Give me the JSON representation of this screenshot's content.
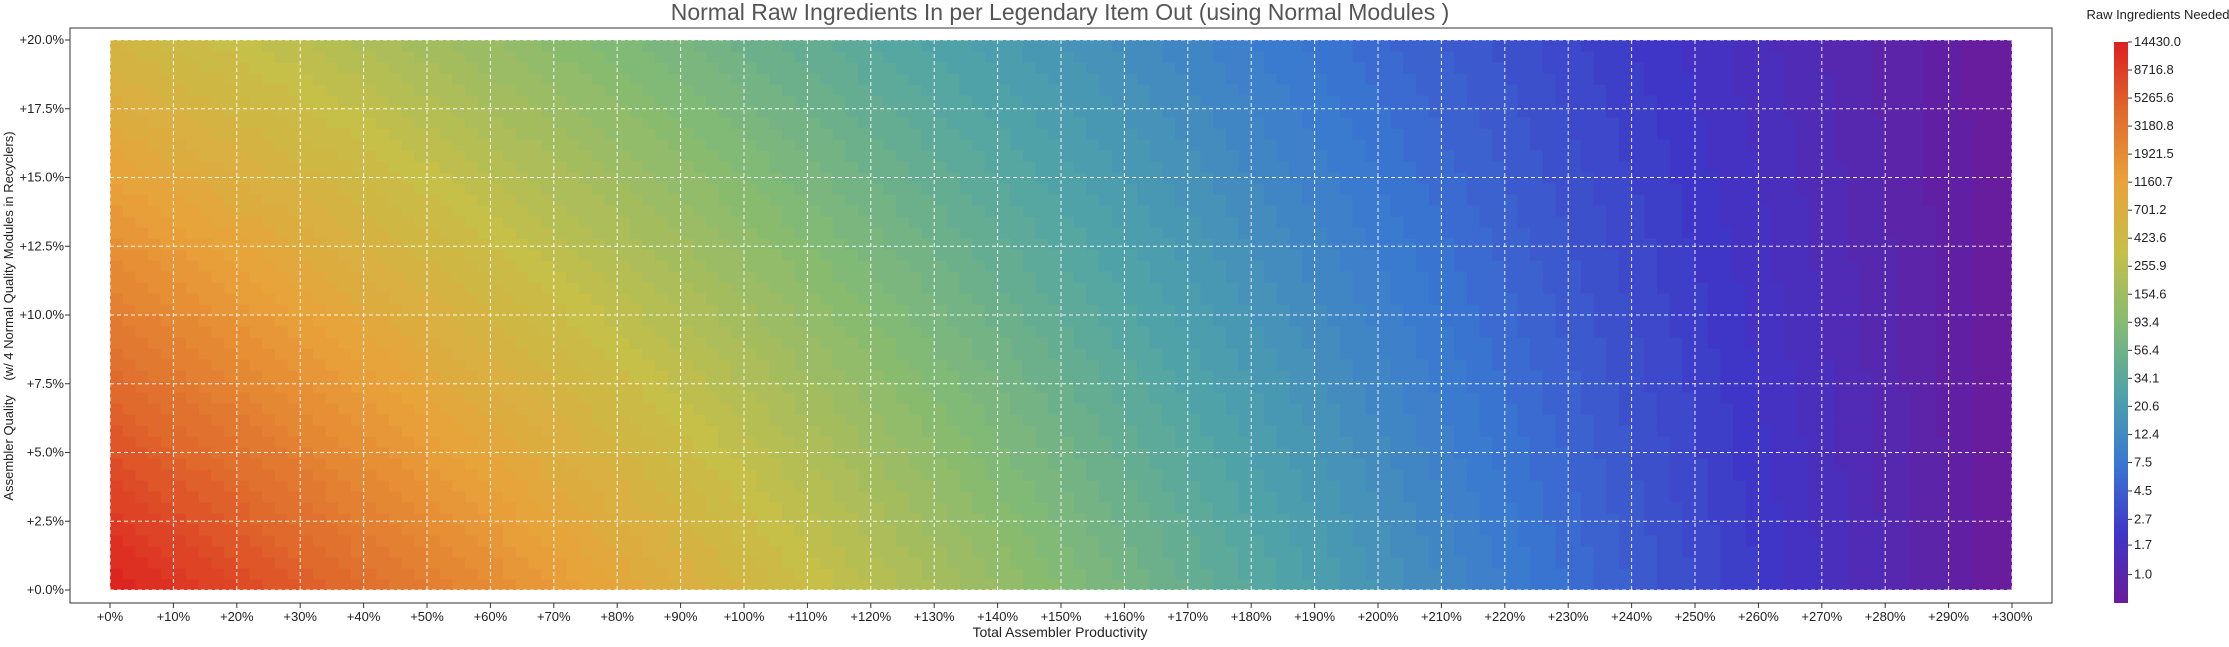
{
  "chart_data": {
    "type": "heatmap",
    "title": "Normal Raw Ingredients In per Legendary Item Out (using Normal Modules )",
    "xlabel": "Total Assembler Productivity",
    "ylabel": "Assembler Quality    (w/ 4 Normal Quality Modules in Recyclers)",
    "x_ticks": [
      "+0%",
      "+10%",
      "+20%",
      "+30%",
      "+40%",
      "+50%",
      "+60%",
      "+70%",
      "+80%",
      "+90%",
      "+100%",
      "+110%",
      "+120%",
      "+130%",
      "+140%",
      "+150%",
      "+160%",
      "+170%",
      "+180%",
      "+190%",
      "+200%",
      "+210%",
      "+220%",
      "+230%",
      "+240%",
      "+250%",
      "+260%",
      "+270%",
      "+280%",
      "+290%",
      "+300%"
    ],
    "y_ticks": [
      "+0.0%",
      "+2.5%",
      "+5.0%",
      "+7.5%",
      "+10.0%",
      "+12.5%",
      "+15.0%",
      "+17.5%",
      "+20.0%"
    ],
    "xlim": [
      0,
      300
    ],
    "ylim": [
      0,
      20
    ],
    "grid": true,
    "colorbar": {
      "label": "Raw Ingredients Needed",
      "scale": "log",
      "ticks": [
        "14430.0",
        "8716.8",
        "5265.6",
        "3180.8",
        "1921.5",
        "1160.7",
        "701.2",
        "423.6",
        "255.9",
        "154.6",
        "93.4",
        "56.4",
        "34.1",
        "20.6",
        "12.4",
        "7.5",
        "4.5",
        "2.7",
        "1.7",
        "1.0"
      ],
      "min": 0.6,
      "max": 14430.0,
      "colors": [
        "#6a1b9a",
        "#3f36c8",
        "#3a78d2",
        "#4fa3a8",
        "#85bb72",
        "#c6bf48",
        "#e9a23a",
        "#e06a2c",
        "#dc2020"
      ]
    },
    "corner_values": {
      "x0_y0": 14430.0,
      "x300_y0": 0.6,
      "x0_y20": 500.0,
      "x300_y20": 0.6
    }
  }
}
